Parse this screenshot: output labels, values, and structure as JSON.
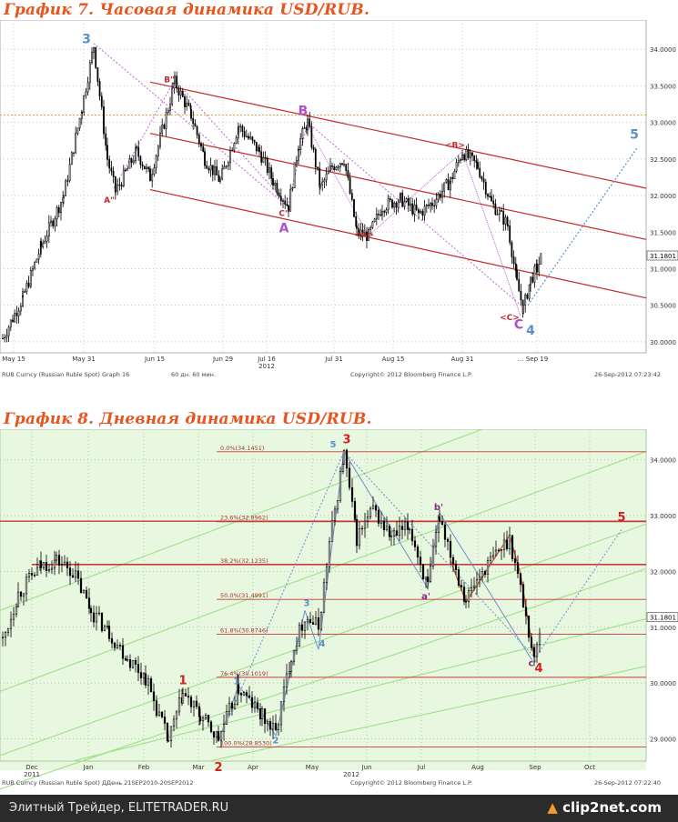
{
  "chart_data": [
    {
      "type": "candlestick",
      "title": "График 7.   Часовая динамика USD/RUB.",
      "x_labels": [
        "May 15",
        "May 31",
        "Jun 15",
        "Jun 29",
        "Jul 16",
        "Jul 31",
        "Aug 15",
        "Aug 31",
        "Sep 19"
      ],
      "year_label": "2012",
      "y_ticks": [
        "30.0000",
        "30.5000",
        "31.0000",
        "31.5000",
        "32.0000",
        "32.5000",
        "33.0000",
        "33.5000",
        "34.0000"
      ],
      "ylim": [
        29.85,
        34.3
      ],
      "last_price": "31.1801",
      "horizontal_line": 33.1,
      "wave_labels": [
        {
          "text": "3",
          "x": 95,
          "y": 34.08,
          "color": "#5b8fc9"
        },
        {
          "text": "B\"",
          "x": 186,
          "y": 33.55,
          "color": "#c22b2b"
        },
        {
          "text": "A\"",
          "x": 120,
          "y": 31.9,
          "color": "#c22b2b"
        },
        {
          "text": "B",
          "x": 333,
          "y": 33.1,
          "color": "#b04fc8"
        },
        {
          "text": "C\"",
          "x": 312,
          "y": 31.72,
          "color": "#c22b2b"
        },
        {
          "text": "A",
          "x": 312,
          "y": 31.5,
          "color": "#b04fc8"
        },
        {
          "text": "<A>",
          "x": 400,
          "y": 31.43,
          "color": "#c22b2b"
        },
        {
          "text": "<B>",
          "x": 500,
          "y": 32.65,
          "color": "#c22b2b"
        },
        {
          "text": "<C>",
          "x": 560,
          "y": 30.3,
          "color": "#c22b2b"
        },
        {
          "text": "C",
          "x": 570,
          "y": 30.18,
          "color": "#b04fc8"
        },
        {
          "text": "4",
          "x": 583,
          "y": 30.1,
          "color": "#5b8fc9"
        },
        {
          "text": "5",
          "x": 697,
          "y": 32.78,
          "color": "#5b8fc9"
        }
      ],
      "footer_left": "RUB Curncy (Russian Ruble Spot) Graph 16",
      "footer_mid1": "60 дн. 60 мин.",
      "footer_mid2": "Copyright© 2012 Bloomberg Finance L.P.",
      "footer_right": "26-Sep-2012 07:23:42",
      "extra_tick": "..."
    },
    {
      "type": "candlestick",
      "title": "График 8.   Дневная динамика USD/RUB.",
      "x_labels": [
        "Dec",
        "Jan",
        "Feb",
        "Mar",
        "Apr",
        "May",
        "Jun",
        "Jul",
        "Aug",
        "Sep",
        "Oct"
      ],
      "year_labels": [
        "2011",
        "2012"
      ],
      "y_ticks": [
        "29.0000",
        "30.0000",
        "31.0000",
        "32.0000",
        "33.0000",
        "34.0000"
      ],
      "ylim": [
        28.6,
        34.55
      ],
      "last_price": "31.1801",
      "fib_levels": [
        {
          "label": "0.0%(34.1451)",
          "value": 34.1451
        },
        {
          "label": "23.6%(32.8962)",
          "value": 32.8962
        },
        {
          "label": "38.2%(32.1235)",
          "value": 32.1235
        },
        {
          "label": "50.0%(31.4991)",
          "value": 31.4991
        },
        {
          "label": "61.8%(30.8746)",
          "value": 30.8746
        },
        {
          "label": "76.4%(30.1019)",
          "value": 30.1019
        },
        {
          "label": "100.0%(28.8530)",
          "value": 28.853
        }
      ],
      "wave_labels": [
        {
          "text": "1",
          "x": 201,
          "y": 29.98,
          "color": "#d42020"
        },
        {
          "text": "2",
          "x": 240,
          "y": 28.42,
          "color": "#d42020"
        },
        {
          "text": "3",
          "x": 381,
          "y": 34.3,
          "color": "#d42020"
        },
        {
          "text": "4",
          "x": 592,
          "y": 30.2,
          "color": "#d42020"
        },
        {
          "text": "5",
          "x": 683,
          "y": 32.9,
          "color": "#d42020"
        },
        {
          "text": "1",
          "x": 260,
          "y": 29.98,
          "color": "#5b8fc9"
        },
        {
          "text": "2",
          "x": 303,
          "y": 28.92,
          "color": "#5b8fc9"
        },
        {
          "text": "3",
          "x": 337,
          "y": 31.38,
          "color": "#5b8fc9"
        },
        {
          "text": "4",
          "x": 354,
          "y": 30.65,
          "color": "#5b8fc9"
        },
        {
          "text": "5",
          "x": 366,
          "y": 34.22,
          "color": "#5b8fc9"
        },
        {
          "text": "a'",
          "x": 468,
          "y": 31.5,
          "color": "#8a2a8a"
        },
        {
          "text": "b'",
          "x": 482,
          "y": 33.1,
          "color": "#8a2a8a"
        },
        {
          "text": "c'",
          "x": 585,
          "y": 30.3,
          "color": "#8a2a8a"
        }
      ],
      "footer_left": "RUB Curncy (Russian Ruble Spot) ДДень 21SEP2010-20SEP2012",
      "footer_mid": "Copyright© 2012 Bloomberg Finance L.P.",
      "footer_right": "26-Sep-2012 07:22:40"
    }
  ],
  "footer": {
    "site_text": "Элитный Трейдер, ELITETRADER.RU",
    "logo_text": "clip2net.com"
  }
}
